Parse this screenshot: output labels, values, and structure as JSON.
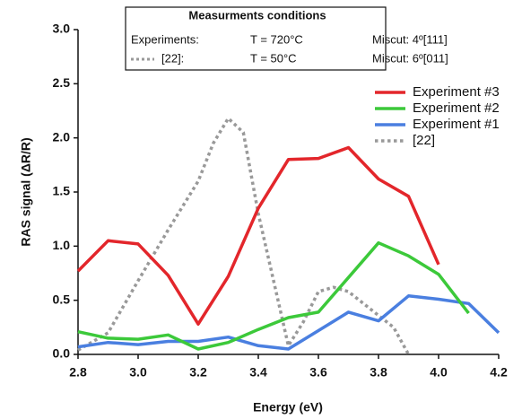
{
  "chart_data": {
    "type": "line",
    "x_label": "Energy (eV)",
    "y_label": "RAS signal (ΔR/R)",
    "xlim": [
      2.8,
      4.2
    ],
    "ylim": [
      0,
      3
    ],
    "xticks": [
      2.8,
      {
        "value": 3,
        "label": "3.0"
      },
      3.2,
      3.4,
      3.6,
      3.8,
      {
        "value": 4,
        "label": "4.0"
      },
      4.2
    ],
    "yticks": [
      {
        "value": 0,
        "label": "0.0"
      },
      0.5,
      {
        "value": 1,
        "label": "1.0"
      },
      1.5,
      {
        "value": 2,
        "label": "2.0"
      },
      2.5,
      {
        "value": 3,
        "label": "3.0"
      }
    ],
    "legend_position": "upper right",
    "conditions": {
      "title": "Measurments conditions",
      "rows": [
        [
          "Experiments:",
          "T = 720°C",
          "Miscut: 4º[111]"
        ],
        [
          "[22]:",
          "T = 50°C",
          "Miscut: 6º[011]"
        ]
      ]
    },
    "series": [
      {
        "name": "Experiment #3",
        "color": "#e3262b",
        "dashed": false,
        "x": [
          2.8,
          2.9,
          3.0,
          3.1,
          3.2,
          3.3,
          3.4,
          3.5,
          3.6,
          3.7,
          3.8,
          3.9,
          4.0
        ],
        "values": [
          0.77,
          1.05,
          1.02,
          0.73,
          0.28,
          0.72,
          1.35,
          1.8,
          1.81,
          1.91,
          1.62,
          1.46,
          0.83
        ]
      },
      {
        "name": "Experiment #2",
        "color": "#3cc93a",
        "dashed": false,
        "x": [
          2.8,
          2.9,
          3.0,
          3.1,
          3.2,
          3.3,
          3.4,
          3.5,
          3.6,
          3.7,
          3.8,
          3.9,
          4.0,
          4.1
        ],
        "values": [
          0.21,
          0.15,
          0.14,
          0.18,
          0.05,
          0.11,
          0.23,
          0.34,
          0.39,
          0.71,
          1.03,
          0.91,
          0.74,
          0.38
        ]
      },
      {
        "name": "Experiment #1",
        "color": "#4a7fe0",
        "dashed": false,
        "x": [
          2.8,
          2.9,
          3.0,
          3.1,
          3.2,
          3.3,
          3.4,
          3.5,
          3.6,
          3.7,
          3.8,
          3.9,
          4.0,
          4.1,
          4.2
        ],
        "values": [
          0.07,
          0.11,
          0.09,
          0.12,
          0.12,
          0.16,
          0.08,
          0.05,
          0.22,
          0.39,
          0.31,
          0.54,
          0.51,
          0.47,
          0.2
        ]
      },
      {
        "name": "[22]",
        "color": "#999999",
        "dashed": true,
        "x": [
          2.8,
          2.9,
          3.0,
          3.1,
          3.2,
          3.25,
          3.3,
          3.35,
          3.4,
          3.5,
          3.55,
          3.6,
          3.65,
          3.7,
          3.8,
          3.85,
          3.9
        ],
        "values": [
          0.04,
          0.2,
          0.68,
          1.15,
          1.6,
          1.95,
          2.18,
          2.05,
          1.3,
          0.08,
          0.3,
          0.58,
          0.62,
          0.58,
          0.36,
          0.25,
          0.0
        ]
      }
    ]
  }
}
